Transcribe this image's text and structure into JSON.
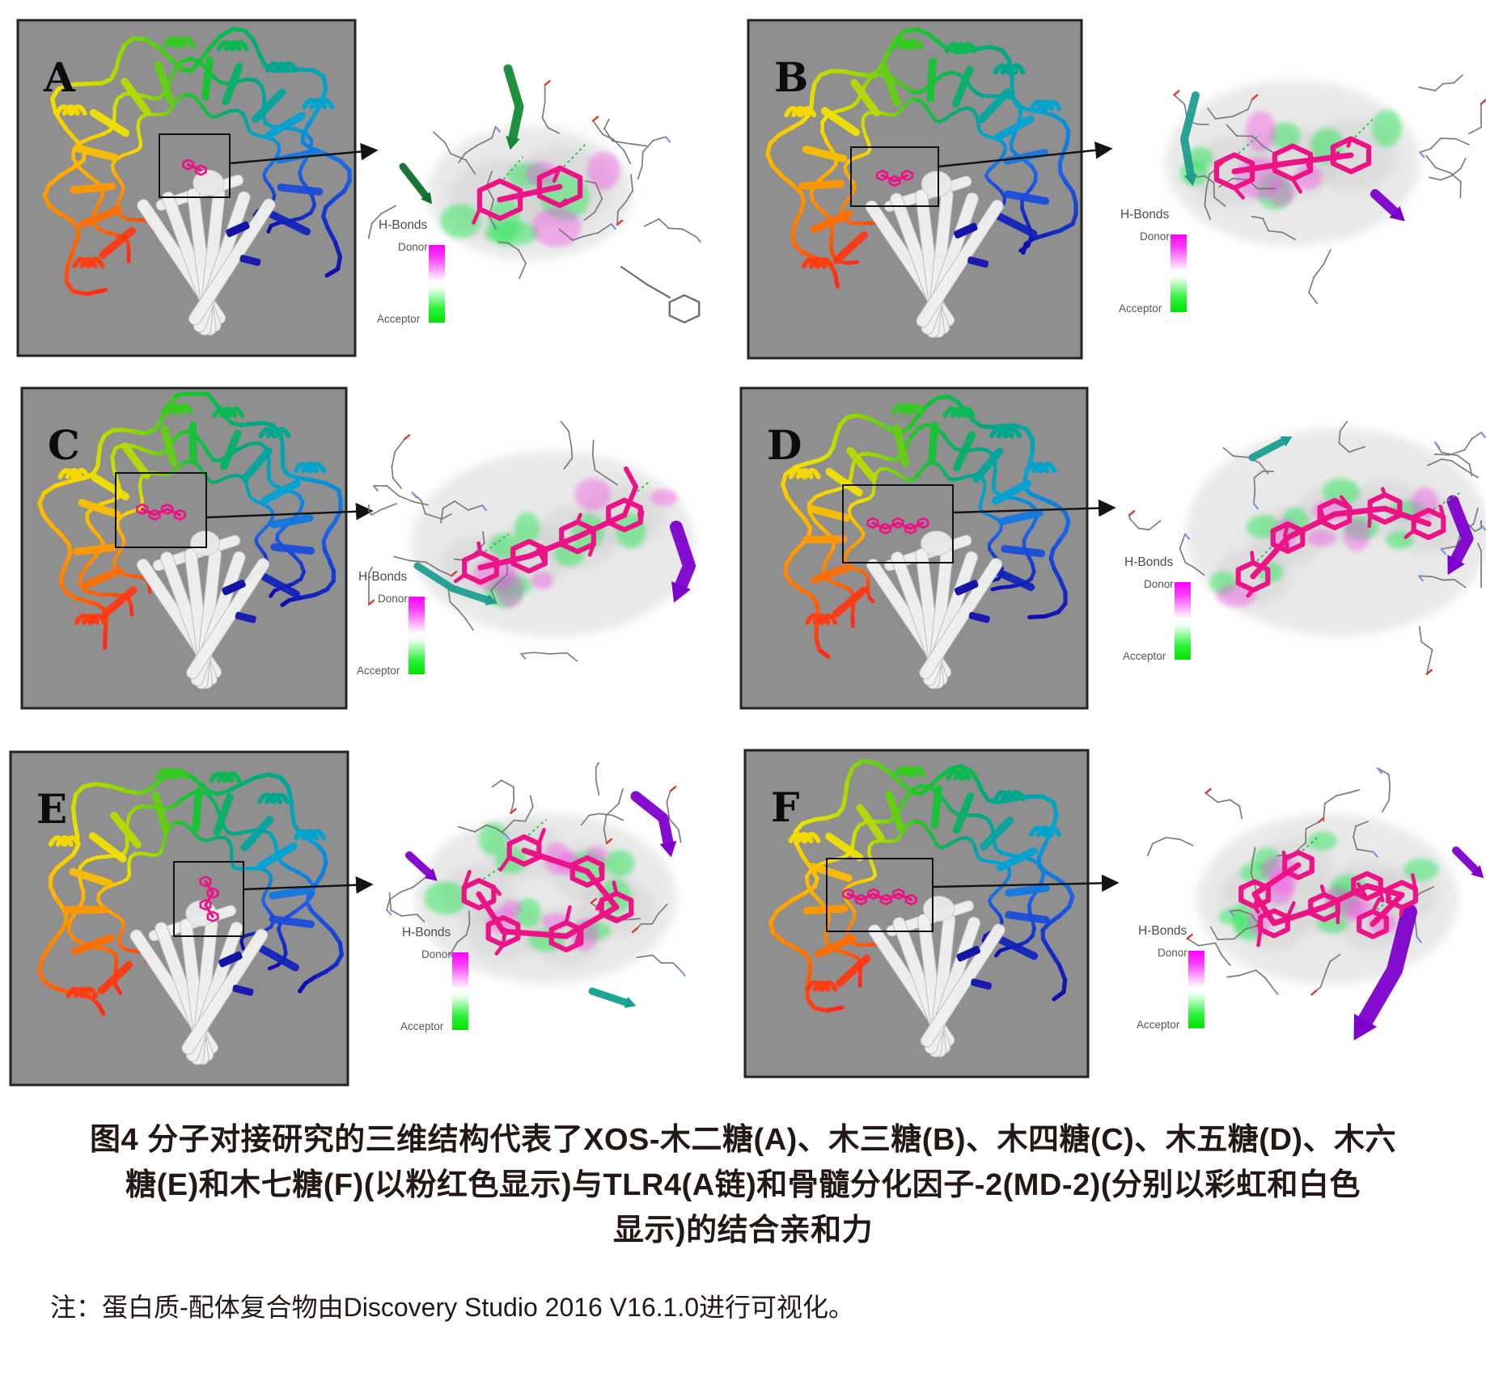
{
  "figure": {
    "panels": [
      {
        "label": "A",
        "ligand_name": "木二糖",
        "sugar_rings": 2
      },
      {
        "label": "B",
        "ligand_name": "木三糖",
        "sugar_rings": 3
      },
      {
        "label": "C",
        "ligand_name": "木四糖",
        "sugar_rings": 4
      },
      {
        "label": "D",
        "ligand_name": "木五糖",
        "sugar_rings": 5
      },
      {
        "label": "E",
        "ligand_name": "木六糖",
        "sugar_rings": 6
      },
      {
        "label": "F",
        "ligand_name": "木七糖",
        "sugar_rings": 7
      }
    ],
    "legend": {
      "title": "H-Bonds",
      "donor": "Donor",
      "acceptor": "Acceptor"
    },
    "caption": {
      "line1": "图4 分子对接研究的三维结构代表了XOS-木二糖(A)、木三糖(B)、木四糖(C)、木五糖(D)、木六",
      "line2": "糖(E)和木七糖(F)(以粉红色显示)与TLR4(A链)和骨髓分化因子-2(MD-2)(分别以彩虹和白色",
      "line3": "显示)的结合亲和力"
    },
    "note": "注：蛋白质-配体复合物由Discovery Studio 2016 V16.1.0进行可视化。",
    "colors": {
      "panel_background": "#8f8f8f",
      "ligand_pink": "#ee1287",
      "hbond_donor": "#ff00ff",
      "hbond_acceptor": "#00e400",
      "ribbon_purple": "#7d00cc",
      "text": "#231815"
    }
  }
}
